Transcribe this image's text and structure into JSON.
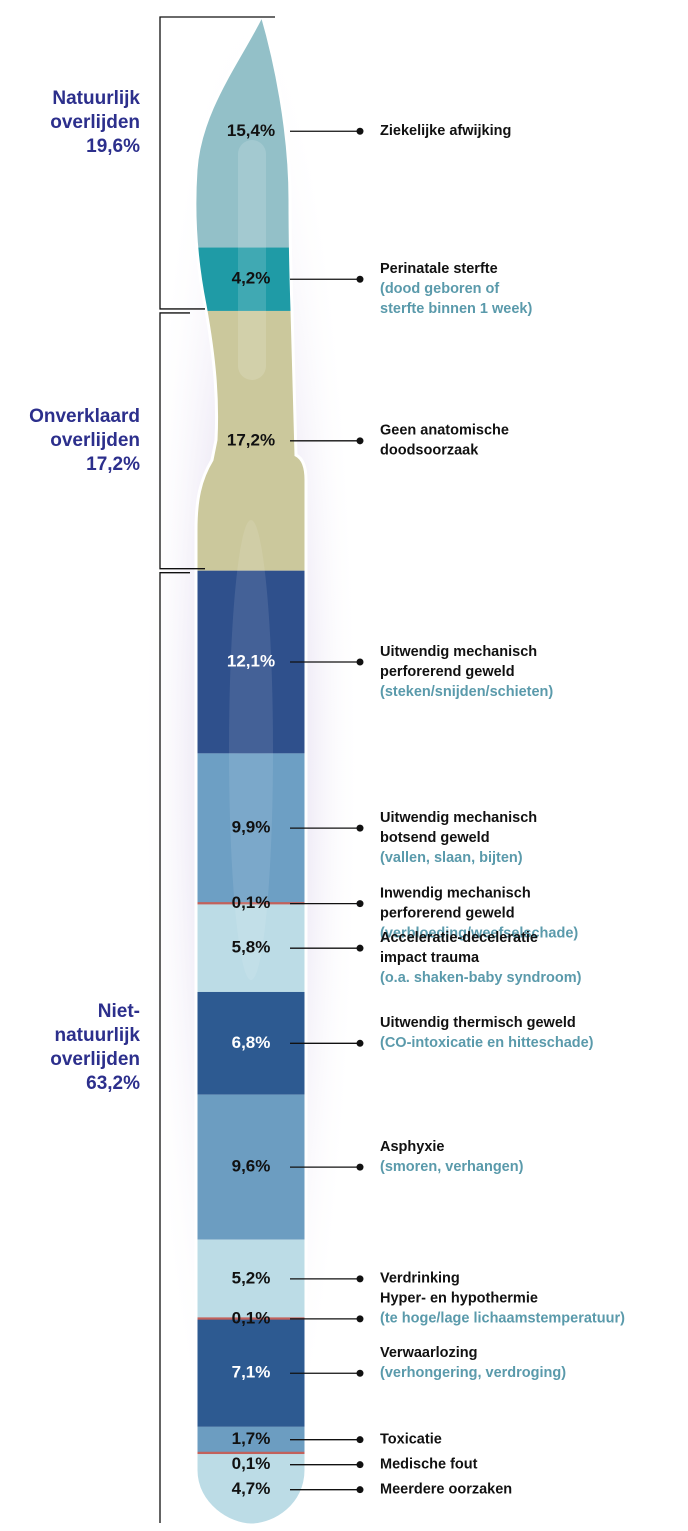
{
  "chart_data": {
    "type": "scalpel",
    "groups": [
      {
        "name": [
          "Natuurlijk",
          "overlijden"
        ],
        "value": 19.6,
        "value_label": "19,6%"
      },
      {
        "name": [
          "Onverklaard",
          "overlijden"
        ],
        "value": 17.2,
        "value_label": "17,2%"
      },
      {
        "name": [
          "Niet-",
          "natuurlijk",
          "overlijden"
        ],
        "value": 63.2,
        "value_label": "63,2%"
      }
    ],
    "segments": [
      {
        "value": 15.4,
        "value_label": "15,4%",
        "color": "#93c0c8",
        "name": [
          "Ziekelijke afwijking"
        ],
        "note": []
      },
      {
        "value": 4.2,
        "value_label": "4,2%",
        "color": "#1f9ba6",
        "name": [
          "Perinatale sterfte"
        ],
        "note": [
          "(dood geboren of",
          "sterfte binnen 1 week)"
        ]
      },
      {
        "value": 17.2,
        "value_label": "17,2%",
        "color": "#cbc89c",
        "name": [
          "Geen anatomische",
          "doodsoorzaak"
        ],
        "note": []
      },
      {
        "value": 12.1,
        "value_label": "12,1%",
        "color": "#2f508c",
        "name": [
          "Uitwendig mechanisch",
          "perforerend geweld"
        ],
        "note": [
          "(steken/snijden/schieten)"
        ]
      },
      {
        "value": 9.9,
        "value_label": "9,9%",
        "color": "#6d9fc4",
        "name": [
          "Uitwendig mechanisch",
          "botsend geweld"
        ],
        "note": [
          "(vallen, slaan, bijten)"
        ]
      },
      {
        "value": 0.1,
        "value_label": "0,1%",
        "color": "#c2615b",
        "name": [
          "Inwendig mechanisch",
          "perforerend geweld"
        ],
        "note": [
          "(verbloeding/weefselschade)"
        ]
      },
      {
        "value": 5.8,
        "value_label": "5,8%",
        "color": "#bcdce6",
        "name": [
          "Acceleratie-deceleratie",
          "impact trauma"
        ],
        "note": [
          "(o.a. shaken-baby syndroom)"
        ]
      },
      {
        "value": 6.8,
        "value_label": "6,8%",
        "color": "#2d5a91",
        "name": [
          "Uitwendig thermisch geweld"
        ],
        "note": [
          "(CO-intoxicatie en hitteschade)"
        ]
      },
      {
        "value": 9.6,
        "value_label": "9,6%",
        "color": "#6c9dc1",
        "name": [
          "Asphyxie"
        ],
        "note": [
          "(smoren, verhangen)"
        ]
      },
      {
        "value": 5.2,
        "value_label": "5,2%",
        "color": "#bcdce6",
        "name": [
          "Verdrinking"
        ],
        "note": []
      },
      {
        "value": 0.1,
        "value_label": "0,1%",
        "color": "#c2615b",
        "name": [
          "Hyper- en hypothermie"
        ],
        "note": [
          "(te hoge/lage lichaamstemperatuur)"
        ]
      },
      {
        "value": 7.1,
        "value_label": "7,1%",
        "color": "#2d5a91",
        "name": [
          "Verwaarlozing"
        ],
        "note": [
          "(verhongering, verdroging)"
        ]
      },
      {
        "value": 1.7,
        "value_label": "1,7%",
        "color": "#6c9dc1",
        "name": [
          "Toxicatie"
        ],
        "note": []
      },
      {
        "value": 0.1,
        "value_label": "0,1%",
        "color": "#c2615b",
        "name": [
          "Medische fout"
        ],
        "note": []
      },
      {
        "value": 4.7,
        "value_label": "4,7%",
        "color": "#bcdce6",
        "name": [
          "Meerdere oorzaken"
        ],
        "note": []
      }
    ]
  }
}
